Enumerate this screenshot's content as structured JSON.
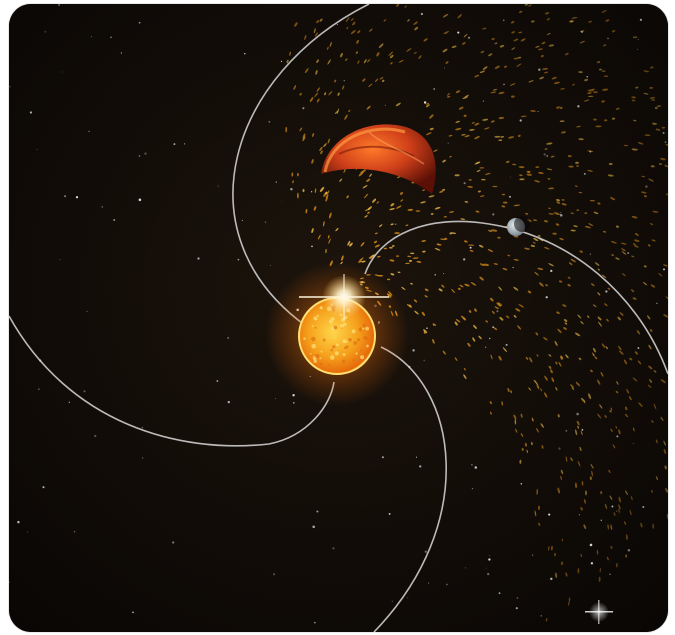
{
  "scene": {
    "subject": "solar-wind-animation",
    "palette": {
      "space": "#0b0806",
      "star_core": "#ffdb4a",
      "star_glow": "#ff8a1a",
      "wind_particle": "#e0a020",
      "red_planet": "#c93a12",
      "moon": "#b8c2c8",
      "orbit_line": "#d9d9d9"
    },
    "icons": [
      "sun-icon",
      "red-planet-icon",
      "moon-icon",
      "flare-icon"
    ]
  }
}
